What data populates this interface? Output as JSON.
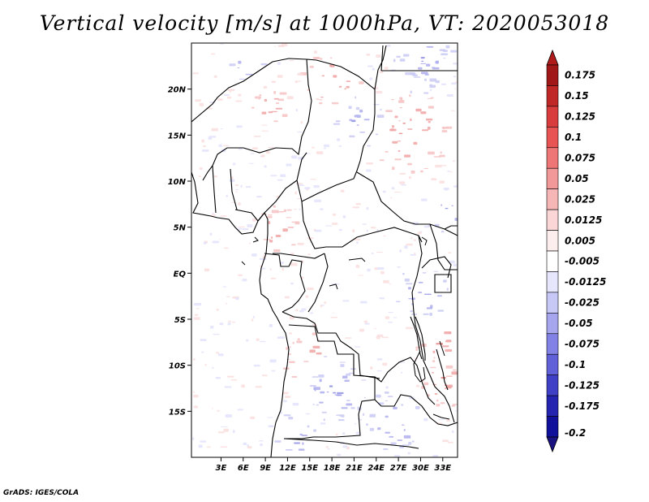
{
  "title": "Vertical velocity [m/s] at 1000hPa, VT: 2020053018",
  "credit": "GrADS: IGES/COLA",
  "map": {
    "lon_range": [
      -1,
      35
    ],
    "lat_range": [
      -20,
      25
    ],
    "lat_ticks": [
      {
        "label": "20N",
        "value": 20
      },
      {
        "label": "15N",
        "value": 15
      },
      {
        "label": "10N",
        "value": 10
      },
      {
        "label": "5N",
        "value": 5
      },
      {
        "label": "EQ",
        "value": 0
      },
      {
        "label": "5S",
        "value": -5
      },
      {
        "label": "10S",
        "value": -10
      },
      {
        "label": "15S",
        "value": -15
      }
    ],
    "lon_ticks": [
      {
        "label": "3E",
        "value": 3
      },
      {
        "label": "6E",
        "value": 6
      },
      {
        "label": "9E",
        "value": 9
      },
      {
        "label": "12E",
        "value": 12
      },
      {
        "label": "15E",
        "value": 15
      },
      {
        "label": "18E",
        "value": 18
      },
      {
        "label": "21E",
        "value": 21
      },
      {
        "label": "24E",
        "value": 24
      },
      {
        "label": "27E",
        "value": 27
      },
      {
        "label": "30E",
        "value": 30
      },
      {
        "label": "33E",
        "value": 33
      }
    ]
  },
  "colorbar": {
    "levels": [
      "0.175",
      "0.15",
      "0.125",
      "0.1",
      "0.075",
      "0.05",
      "0.025",
      "0.0125",
      "0.005",
      "-0.005",
      "-0.0125",
      "-0.025",
      "-0.05",
      "-0.075",
      "-0.1",
      "-0.125",
      "-0.175",
      "-0.2"
    ],
    "colors": [
      "#a01818",
      "#c02828",
      "#d83c3c",
      "#e85454",
      "#ee7676",
      "#f29898",
      "#f6b6b6",
      "#fad6d6",
      "#fdeeee",
      "#ffffff",
      "#e6e6fc",
      "#c8c8f6",
      "#a6a6ee",
      "#8282e6",
      "#6060d8",
      "#4040c6",
      "#2424b0",
      "#10109a"
    ],
    "top_arrow_color": "#b01c1c",
    "bottom_arrow_color": "#1a1280"
  }
}
